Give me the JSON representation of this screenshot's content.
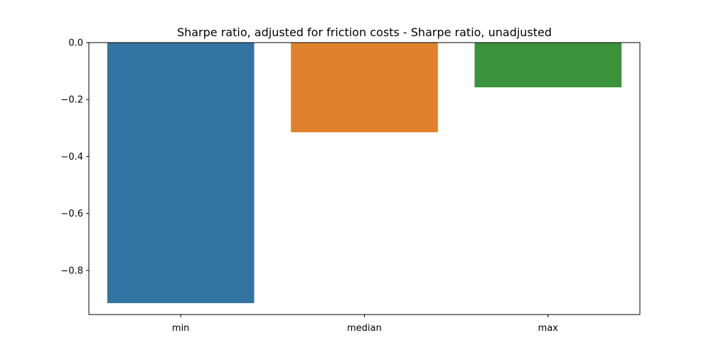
{
  "chart_data": {
    "type": "bar",
    "title": "Sharpe ratio, adjusted for friction costs - Sharpe ratio, unadjusted",
    "xlabel": "",
    "ylabel": "",
    "categories": [
      "min",
      "median",
      "max"
    ],
    "values": [
      -0.915,
      -0.315,
      -0.157
    ],
    "colors": [
      "#3274a1",
      "#e1812c",
      "#3a923a"
    ],
    "ylim": [
      -0.955,
      0.0
    ],
    "yticks": [
      0.0,
      -0.2,
      -0.4,
      -0.6,
      -0.8
    ],
    "ytick_labels": [
      "0.0",
      "−0.2",
      "−0.4",
      "−0.6",
      "−0.8"
    ],
    "grid": false,
    "legend": "none"
  }
}
